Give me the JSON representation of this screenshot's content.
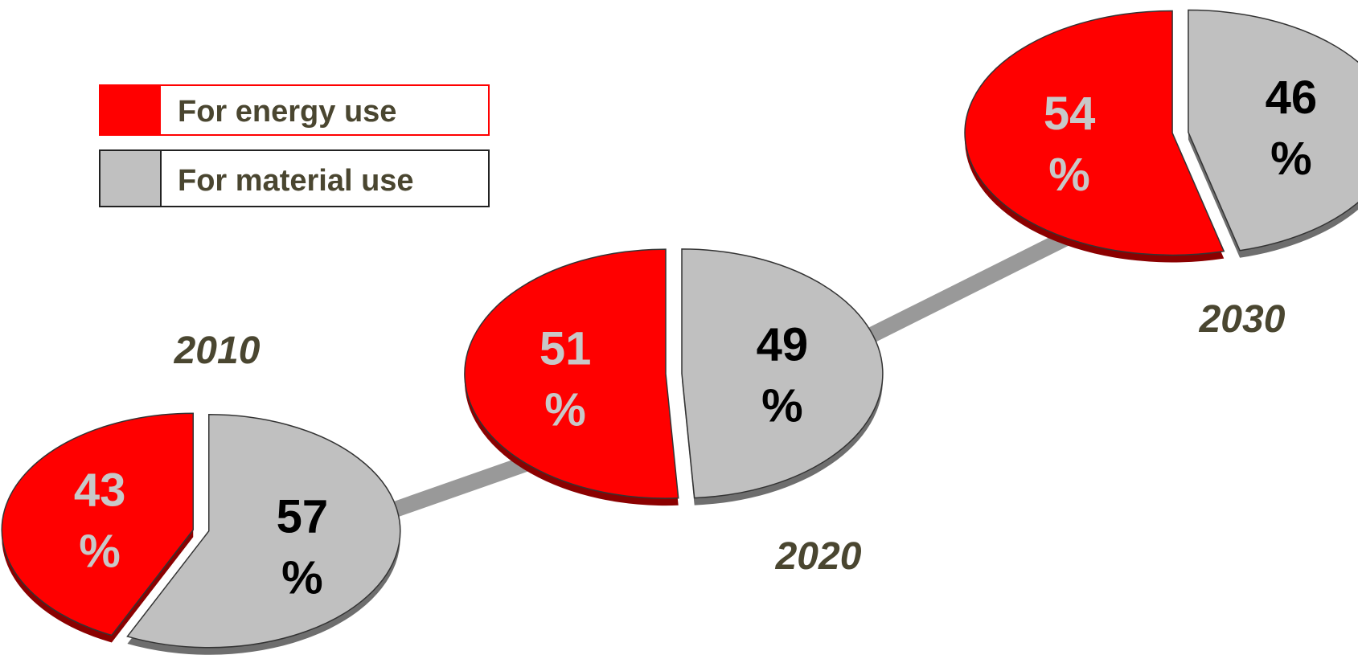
{
  "colors": {
    "energy": "#ff0000",
    "energy_side": "#8b0000",
    "material": "#c0c0c0",
    "material_side": "#6e6e6e",
    "connector": "#999999",
    "energy_label": "#c8c8c8",
    "material_label": "#000000",
    "text": "#4a4630"
  },
  "legend": {
    "position": "top-left",
    "items": [
      {
        "label": "For energy use",
        "color": "#ff0000"
      },
      {
        "label": "For material use",
        "color": "#c0c0c0"
      }
    ]
  },
  "chart_data": [
    {
      "type": "pie",
      "title": "2010",
      "slices": [
        {
          "label": "For energy use",
          "value": 43,
          "value_text": "43",
          "unit": "%"
        },
        {
          "label": "For material use",
          "value": 57,
          "value_text": "57",
          "unit": "%"
        }
      ]
    },
    {
      "type": "pie",
      "title": "2020",
      "slices": [
        {
          "label": "For energy use",
          "value": 51,
          "value_text": "51",
          "unit": "%"
        },
        {
          "label": "For material use",
          "value": 49,
          "value_text": "49",
          "unit": "%"
        }
      ]
    },
    {
      "type": "pie",
      "title": "2030",
      "slices": [
        {
          "label": "For energy use",
          "value": 54,
          "value_text": "54",
          "unit": "%"
        },
        {
          "label": "For material use",
          "value": 46,
          "value_text": "46",
          "unit": "%"
        }
      ]
    }
  ]
}
